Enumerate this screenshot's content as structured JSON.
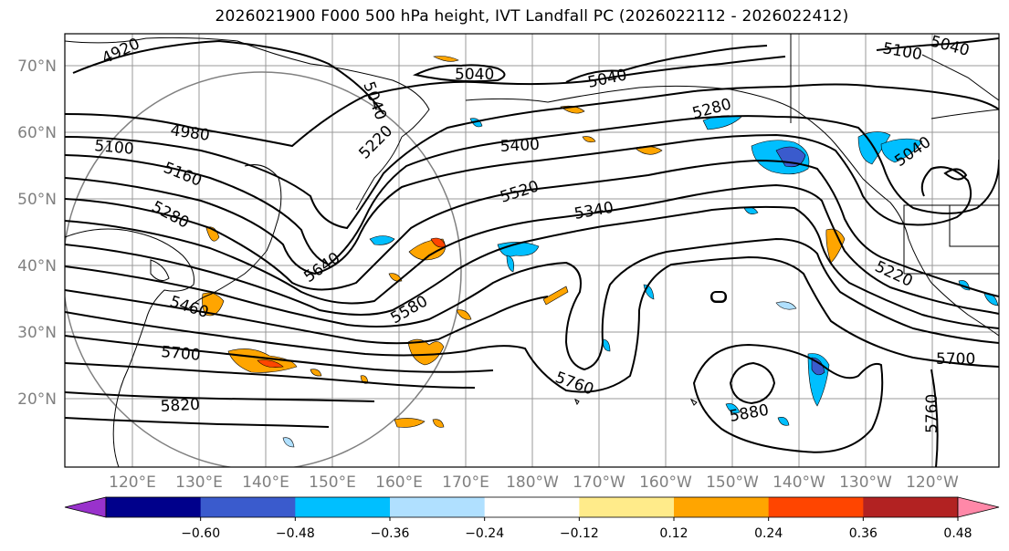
{
  "title": "2026021900 F000 500 hPa height, IVT Landfall PC (2026022112 - 2026022412)",
  "lat_labels": [
    "70°N",
    "60°N",
    "50°N",
    "40°N",
    "30°N",
    "20°N"
  ],
  "lon_labels": [
    "120°E",
    "130°E",
    "140°E",
    "150°E",
    "160°E",
    "170°E",
    "180°W",
    "170°W",
    "160°W",
    "150°W",
    "140°W",
    "130°W",
    "120°W"
  ],
  "contour_labels": [
    "4920",
    "5040",
    "5040",
    "5040",
    "5100",
    "5040",
    "5280",
    "5100",
    "4980",
    "5040",
    "5220",
    "5400",
    "5160",
    "5520",
    "5280",
    "5340",
    "5640",
    "5220",
    "5460",
    "5580",
    "5700",
    "5760",
    "5700",
    "5820",
    "5880",
    "5760",
    "5880"
  ],
  "colorbar": {
    "ticks": [
      "−0.60",
      "−0.48",
      "−0.36",
      "−0.24",
      "−0.12",
      "0.12",
      "0.24",
      "0.36",
      "0.48",
      "0.60"
    ],
    "colors": [
      "#9932cc",
      "#00008b",
      "#3a5bcd",
      "#00bfff",
      "#b0e0ff",
      "#ffffff",
      "#ffeb8a",
      "#ffa500",
      "#ff4500",
      "#b22222",
      "#ff88a8"
    ]
  }
}
